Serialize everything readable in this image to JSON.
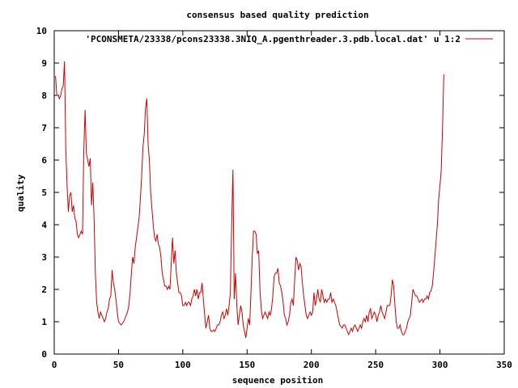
{
  "chart_data": {
    "type": "line",
    "title": "consensus based quality prediction",
    "xlabel": "sequence position",
    "ylabel": "quality",
    "xlim": [
      0,
      350
    ],
    "ylim": [
      0,
      10
    ],
    "xticks": [
      0,
      50,
      100,
      150,
      200,
      250,
      300,
      350
    ],
    "yticks": [
      0,
      1,
      2,
      3,
      4,
      5,
      6,
      7,
      8,
      9,
      10
    ],
    "grid": false,
    "legend_position": "top-right",
    "series": [
      {
        "name": "'PCONSMETA/23338/pcons23338.3NIQ_A.pgenthreader.3.pdb.local.dat' u 1:2",
        "color": "#cc0000",
        "points": [
          [
            1,
            8.6
          ],
          [
            2,
            8.0
          ],
          [
            3,
            8.0
          ],
          [
            4,
            7.9
          ],
          [
            5,
            8.0
          ],
          [
            6,
            8.2
          ],
          [
            7,
            8.3
          ],
          [
            8,
            9.05
          ],
          [
            9,
            6.3
          ],
          [
            10,
            5.2
          ],
          [
            11,
            4.4
          ],
          [
            12,
            4.9
          ],
          [
            13,
            5.0
          ],
          [
            14,
            4.4
          ],
          [
            15,
            4.6
          ],
          [
            16,
            4.2
          ],
          [
            17,
            4.1
          ],
          [
            18,
            3.7
          ],
          [
            19,
            3.6
          ],
          [
            20,
            3.7
          ],
          [
            21,
            3.8
          ],
          [
            22,
            3.7
          ],
          [
            23,
            6.3
          ],
          [
            24,
            7.55
          ],
          [
            25,
            6.2
          ],
          [
            26,
            6.0
          ],
          [
            27,
            5.8
          ],
          [
            28,
            6.05
          ],
          [
            29,
            4.6
          ],
          [
            30,
            5.3
          ],
          [
            31,
            4.2
          ],
          [
            32,
            2.5
          ],
          [
            33,
            1.6
          ],
          [
            34,
            1.3
          ],
          [
            35,
            1.1
          ],
          [
            36,
            1.3
          ],
          [
            37,
            1.2
          ],
          [
            38,
            1.1
          ],
          [
            39,
            1.0
          ],
          [
            40,
            1.1
          ],
          [
            41,
            1.3
          ],
          [
            42,
            1.4
          ],
          [
            43,
            1.7
          ],
          [
            44,
            1.8
          ],
          [
            45,
            2.6
          ],
          [
            46,
            2.2
          ],
          [
            47,
            2.0
          ],
          [
            48,
            1.7
          ],
          [
            49,
            1.3
          ],
          [
            50,
            1.0
          ],
          [
            51,
            0.95
          ],
          [
            52,
            0.9
          ],
          [
            53,
            0.95
          ],
          [
            54,
            1.0
          ],
          [
            55,
            1.1
          ],
          [
            56,
            1.2
          ],
          [
            57,
            1.3
          ],
          [
            58,
            1.5
          ],
          [
            59,
            1.9
          ],
          [
            60,
            2.5
          ],
          [
            61,
            3.0
          ],
          [
            62,
            2.8
          ],
          [
            63,
            3.3
          ],
          [
            64,
            3.6
          ],
          [
            65,
            3.9
          ],
          [
            66,
            4.2
          ],
          [
            67,
            4.8
          ],
          [
            68,
            5.5
          ],
          [
            69,
            6.4
          ],
          [
            70,
            6.8
          ],
          [
            71,
            7.6
          ],
          [
            72,
            7.9
          ],
          [
            73,
            6.5
          ],
          [
            74,
            6.0
          ],
          [
            75,
            5.0
          ],
          [
            76,
            4.5
          ],
          [
            77,
            4.0
          ],
          [
            78,
            3.6
          ],
          [
            79,
            3.5
          ],
          [
            80,
            3.7
          ],
          [
            81,
            3.4
          ],
          [
            82,
            3.3
          ],
          [
            83,
            3.0
          ],
          [
            84,
            2.5
          ],
          [
            85,
            2.3
          ],
          [
            86,
            2.1
          ],
          [
            87,
            2.1
          ],
          [
            88,
            2.0
          ],
          [
            89,
            2.1
          ],
          [
            90,
            2.0
          ],
          [
            91,
            2.8
          ],
          [
            92,
            3.6
          ],
          [
            93,
            2.8
          ],
          [
            94,
            3.2
          ],
          [
            95,
            2.5
          ],
          [
            96,
            2.2
          ],
          [
            97,
            1.9
          ],
          [
            98,
            1.9
          ],
          [
            99,
            1.8
          ],
          [
            100,
            1.5
          ],
          [
            101,
            1.5
          ],
          [
            102,
            1.6
          ],
          [
            103,
            1.5
          ],
          [
            104,
            1.6
          ],
          [
            105,
            1.6
          ],
          [
            106,
            1.5
          ],
          [
            107,
            1.7
          ],
          [
            108,
            1.8
          ],
          [
            109,
            2.0
          ],
          [
            110,
            1.8
          ],
          [
            111,
            2.0
          ],
          [
            112,
            1.7
          ],
          [
            113,
            1.9
          ],
          [
            114,
            1.9
          ],
          [
            115,
            2.2
          ],
          [
            116,
            1.7
          ],
          [
            117,
            1.2
          ],
          [
            118,
            0.8
          ],
          [
            119,
            1.0
          ],
          [
            120,
            1.2
          ],
          [
            121,
            0.8
          ],
          [
            122,
            0.7
          ],
          [
            123,
            0.7
          ],
          [
            124,
            0.75
          ],
          [
            125,
            0.7
          ],
          [
            126,
            0.8
          ],
          [
            127,
            0.9
          ],
          [
            128,
            0.9
          ],
          [
            129,
            1.0
          ],
          [
            130,
            1.2
          ],
          [
            131,
            1.3
          ],
          [
            132,
            1.1
          ],
          [
            133,
            1.2
          ],
          [
            134,
            1.4
          ],
          [
            135,
            1.2
          ],
          [
            136,
            1.5
          ],
          [
            137,
            1.9
          ],
          [
            138,
            4.0
          ],
          [
            139,
            5.7
          ],
          [
            140,
            1.7
          ],
          [
            141,
            2.5
          ],
          [
            142,
            1.5
          ],
          [
            143,
            0.9
          ],
          [
            144,
            1.2
          ],
          [
            145,
            1.5
          ],
          [
            146,
            1.3
          ],
          [
            147,
            0.9
          ],
          [
            148,
            0.7
          ],
          [
            149,
            0.5
          ],
          [
            150,
            0.8
          ],
          [
            151,
            1.1
          ],
          [
            152,
            0.9
          ],
          [
            153,
            1.9
          ],
          [
            154,
            3.0
          ],
          [
            155,
            3.8
          ],
          [
            156,
            3.8
          ],
          [
            157,
            3.7
          ],
          [
            158,
            3.1
          ],
          [
            159,
            3.2
          ],
          [
            160,
            2.0
          ],
          [
            161,
            1.4
          ],
          [
            162,
            1.1
          ],
          [
            163,
            1.2
          ],
          [
            164,
            1.3
          ],
          [
            165,
            1.2
          ],
          [
            166,
            1.1
          ],
          [
            167,
            1.3
          ],
          [
            168,
            1.2
          ],
          [
            169,
            1.4
          ],
          [
            170,
            1.8
          ],
          [
            171,
            2.4
          ],
          [
            172,
            2.5
          ],
          [
            173,
            2.5
          ],
          [
            174,
            2.65
          ],
          [
            175,
            2.2
          ],
          [
            176,
            2.1
          ],
          [
            177,
            1.9
          ],
          [
            178,
            1.6
          ],
          [
            179,
            1.2
          ],
          [
            180,
            1.1
          ],
          [
            181,
            0.9
          ],
          [
            182,
            1.0
          ],
          [
            183,
            1.2
          ],
          [
            184,
            1.6
          ],
          [
            185,
            1.7
          ],
          [
            186,
            1.5
          ],
          [
            187,
            2.3
          ],
          [
            188,
            3.0
          ],
          [
            189,
            2.9
          ],
          [
            190,
            2.6
          ],
          [
            191,
            2.8
          ],
          [
            192,
            2.7
          ],
          [
            193,
            2.2
          ],
          [
            194,
            1.8
          ],
          [
            195,
            1.5
          ],
          [
            196,
            1.2
          ],
          [
            197,
            1.1
          ],
          [
            198,
            1.2
          ],
          [
            199,
            1.3
          ],
          [
            200,
            1.2
          ],
          [
            201,
            1.3
          ],
          [
            202,
            1.9
          ],
          [
            203,
            1.5
          ],
          [
            204,
            1.7
          ],
          [
            205,
            2.0
          ],
          [
            206,
            1.7
          ],
          [
            207,
            1.6
          ],
          [
            208,
            2.0
          ],
          [
            209,
            1.8
          ],
          [
            210,
            1.6
          ],
          [
            211,
            1.7
          ],
          [
            212,
            1.6
          ],
          [
            213,
            1.7
          ],
          [
            214,
            1.7
          ],
          [
            215,
            1.9
          ],
          [
            216,
            1.6
          ],
          [
            217,
            1.7
          ],
          [
            218,
            1.6
          ],
          [
            219,
            1.5
          ],
          [
            220,
            1.3
          ],
          [
            221,
            1.1
          ],
          [
            222,
            0.9
          ],
          [
            223,
            0.85
          ],
          [
            224,
            0.8
          ],
          [
            225,
            0.9
          ],
          [
            226,
            0.9
          ],
          [
            227,
            0.8
          ],
          [
            228,
            0.7
          ],
          [
            229,
            0.6
          ],
          [
            230,
            0.7
          ],
          [
            231,
            0.8
          ],
          [
            232,
            0.7
          ],
          [
            233,
            0.85
          ],
          [
            234,
            0.9
          ],
          [
            235,
            0.8
          ],
          [
            236,
            0.7
          ],
          [
            237,
            0.8
          ],
          [
            238,
            0.9
          ],
          [
            239,
            0.8
          ],
          [
            240,
            1.0
          ],
          [
            241,
            1.1
          ],
          [
            242,
            1.0
          ],
          [
            243,
            1.2
          ],
          [
            244,
            1.0
          ],
          [
            245,
            1.3
          ],
          [
            246,
            1.4
          ],
          [
            247,
            1.1
          ],
          [
            248,
            1.2
          ],
          [
            249,
            1.3
          ],
          [
            250,
            1.2
          ],
          [
            251,
            1.0
          ],
          [
            252,
            1.2
          ],
          [
            253,
            1.3
          ],
          [
            254,
            1.5
          ],
          [
            255,
            1.3
          ],
          [
            256,
            1.2
          ],
          [
            257,
            1.1
          ],
          [
            258,
            1.3
          ],
          [
            259,
            1.5
          ],
          [
            260,
            1.5
          ],
          [
            261,
            1.5
          ],
          [
            262,
            1.8
          ],
          [
            263,
            2.3
          ],
          [
            264,
            2.1
          ],
          [
            265,
            1.5
          ],
          [
            266,
            1.0
          ],
          [
            267,
            0.8
          ],
          [
            268,
            0.8
          ],
          [
            269,
            0.9
          ],
          [
            270,
            0.7
          ],
          [
            271,
            0.6
          ],
          [
            272,
            0.6
          ],
          [
            273,
            0.7
          ],
          [
            274,
            0.8
          ],
          [
            275,
            1.0
          ],
          [
            276,
            1.1
          ],
          [
            277,
            1.2
          ],
          [
            278,
            1.6
          ],
          [
            279,
            2.0
          ],
          [
            280,
            1.9
          ],
          [
            281,
            1.8
          ],
          [
            282,
            1.8
          ],
          [
            283,
            1.7
          ],
          [
            284,
            1.6
          ],
          [
            285,
            1.65
          ],
          [
            286,
            1.7
          ],
          [
            287,
            1.6
          ],
          [
            288,
            1.7
          ],
          [
            289,
            1.7
          ],
          [
            290,
            1.8
          ],
          [
            291,
            1.7
          ],
          [
            292,
            1.9
          ],
          [
            293,
            1.95
          ],
          [
            294,
            2.1
          ],
          [
            295,
            2.5
          ],
          [
            296,
            3.0
          ],
          [
            297,
            3.5
          ],
          [
            298,
            4.0
          ],
          [
            299,
            4.8
          ],
          [
            300,
            5.2
          ],
          [
            301,
            5.7
          ],
          [
            302,
            7.0
          ],
          [
            303,
            8.65
          ]
        ]
      }
    ]
  }
}
